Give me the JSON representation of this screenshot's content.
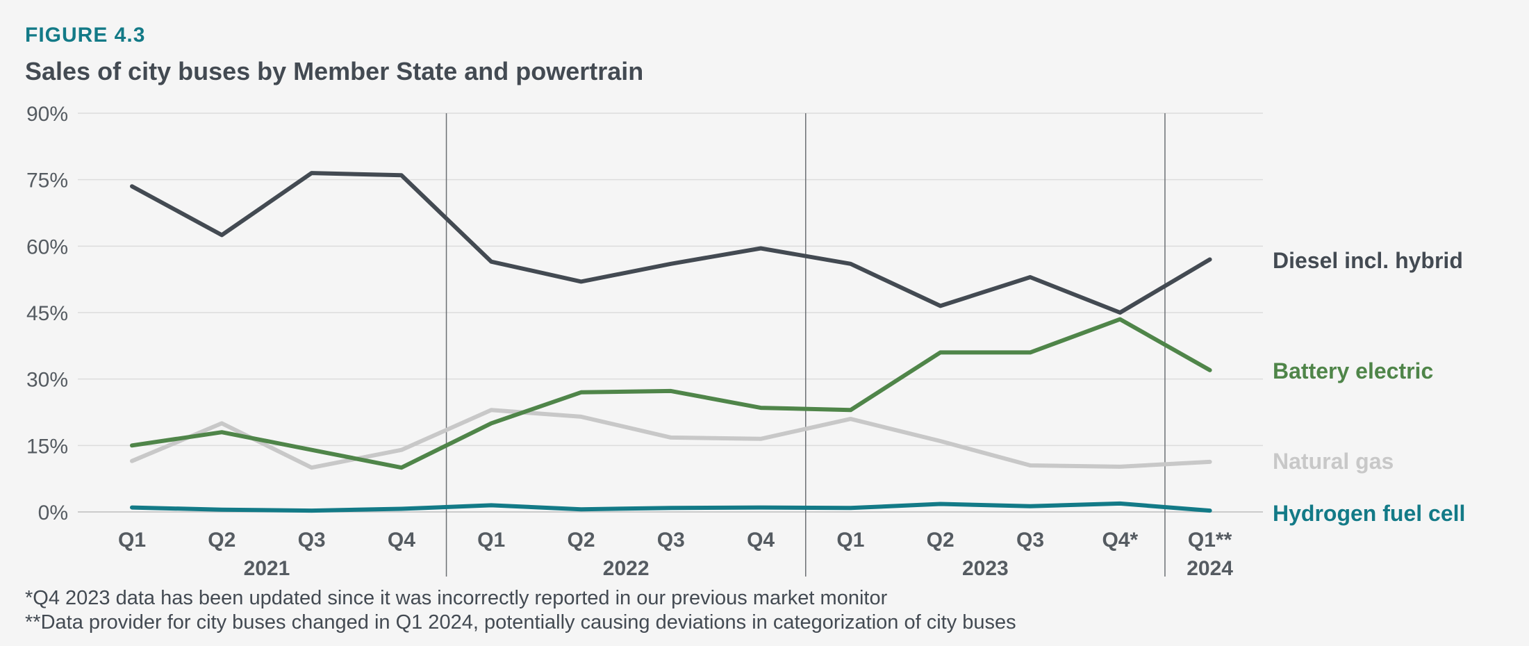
{
  "figure_label": "FIGURE 4.3",
  "title": "Sales of city buses by Member State and powertrain",
  "footnotes": [
    "*Q4 2023 data has been updated since it was incorrectly reported in our previous market monitor",
    "**Data provider for city buses changed in Q1 2024, potentially causing deviations in categorization of city buses"
  ],
  "chart_data": {
    "type": "line",
    "title": "Sales of city buses by Member State and powertrain",
    "xlabel": "",
    "ylabel": "",
    "x": [
      "Q1",
      "Q2",
      "Q3",
      "Q4",
      "Q1",
      "Q2",
      "Q3",
      "Q4",
      "Q1",
      "Q2",
      "Q3",
      "Q4*",
      "Q1**"
    ],
    "year_groups": [
      {
        "label": "2021",
        "start": 0,
        "end": 3
      },
      {
        "label": "2022",
        "start": 4,
        "end": 7
      },
      {
        "label": "2023",
        "start": 8,
        "end": 11
      },
      {
        "label": "2024",
        "start": 12,
        "end": 12
      }
    ],
    "ylim": [
      0,
      90
    ],
    "yticks": [
      0,
      15,
      30,
      45,
      60,
      75,
      90
    ],
    "ytick_labels": [
      "0%",
      "15%",
      "30%",
      "45%",
      "60%",
      "75%",
      "90%"
    ],
    "grid": true,
    "legend": "right-end labels",
    "series": [
      {
        "name": "Diesel incl. hybrid",
        "color": "#434a52",
        "values": [
          73.5,
          62.5,
          76.5,
          76,
          56.5,
          52,
          56,
          59.5,
          56,
          46.5,
          53,
          45,
          57
        ]
      },
      {
        "name": "Battery electric",
        "color": "#4f8549",
        "values": [
          15,
          18,
          14,
          10,
          20,
          27,
          27.3,
          23.5,
          23,
          36,
          36,
          43.5,
          32
        ]
      },
      {
        "name": "Natural gas",
        "color": "#c8c8c8",
        "values": [
          11.5,
          20,
          10,
          14,
          23,
          21.5,
          16.8,
          16.5,
          21,
          16,
          10.5,
          10.2,
          11.3
        ]
      },
      {
        "name": "Hydrogen fuel cell",
        "color": "#137a87",
        "values": [
          1,
          0.5,
          0.3,
          0.7,
          1.5,
          0.6,
          0.9,
          1,
          0.9,
          1.8,
          1.3,
          1.9,
          0.3
        ]
      }
    ]
  }
}
